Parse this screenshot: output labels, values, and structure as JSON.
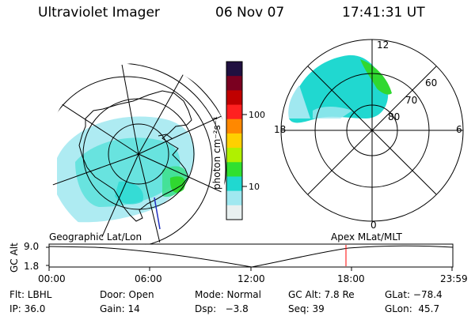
{
  "header": {
    "instrument": "Ultraviolet Imager",
    "date": "06 Nov 07",
    "time": "17:41:31 UT"
  },
  "colorbar": {
    "unit_label": "photon cm⁻²s⁻¹",
    "ticks": [
      "100",
      "10"
    ],
    "colors": [
      "#201040",
      "#7a0020",
      "#c00000",
      "#ff2020",
      "#ff8800",
      "#ffd000",
      "#b0f000",
      "#30e030",
      "#20d8d0",
      "#a0e8f0",
      "#e8f0f0"
    ]
  },
  "left_map": {
    "caption": "Geographic Lat/Lon"
  },
  "right_map": {
    "caption": "Apex MLat/MLT",
    "hour_labels": [
      "12",
      "18",
      "6",
      "0"
    ],
    "lat_labels": [
      "60",
      "70",
      "80"
    ]
  },
  "timeline": {
    "axis_title": "GC Alt",
    "y_ticks": [
      "9.0",
      "1.8"
    ],
    "x_ticks": [
      "00:00",
      "06:00",
      "12:00",
      "18:00",
      "23:59"
    ],
    "marker_color": "#ff0000"
  },
  "status": {
    "filter": "Flt: LBHL",
    "door": "Door: Open",
    "mode": "Mode: Normal",
    "gc_alt": "GC Alt: 7.8 Re",
    "glat": "GLat: −78.4",
    "ip": "IP: 36.0",
    "gain": "Gain: 14",
    "dsp": "Dsp:   −3.8",
    "seq": "Seq: 39",
    "glon": "GLon:  45.7"
  }
}
